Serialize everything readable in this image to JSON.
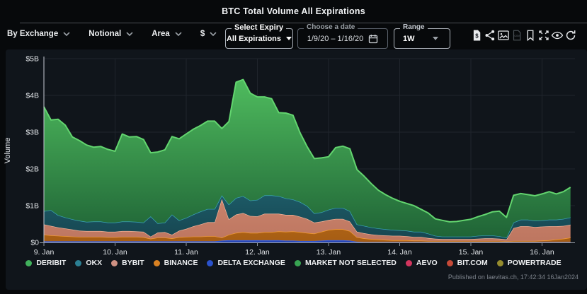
{
  "header": {
    "title": "BTC Total Volume All Expirations"
  },
  "toolbar": {
    "filters": [
      {
        "label": "By Exchange"
      },
      {
        "label": "Notional"
      },
      {
        "label": "Area"
      },
      {
        "label": "$"
      }
    ],
    "expiry": {
      "legend": "Select Expiry",
      "value": "All Expirations"
    },
    "date": {
      "legend": "Choose a date",
      "value": "1/9/20 – 1/16/20"
    },
    "range": {
      "legend": "Range",
      "value": "1W"
    },
    "icons": [
      "export-data",
      "share",
      "download-image",
      "download-csv",
      "bookmark",
      "fullscreen",
      "toggle-visibility",
      "refresh"
    ]
  },
  "footer": {
    "published": "Published on laevitas.ch, 17:42:34 16Jan2024"
  },
  "chart_data": {
    "type": "area",
    "stacked": true,
    "title": "BTC Total Volume All Expirations",
    "ylabel": "Volume",
    "units": "$B",
    "ylim": [
      0,
      5
    ],
    "ytick_labels": [
      "$0",
      "$1B",
      "$2B",
      "$3B",
      "$4B",
      "$5B"
    ],
    "xtick_labels": [
      "9. Jan",
      "10. Jan",
      "11. Jan",
      "12. Jan",
      "13. Jan",
      "14. Jan",
      "15. Jan",
      "16. Jan"
    ],
    "grid": true,
    "legend_position": "bottom",
    "x": {
      "start": 0,
      "step": 0.1,
      "count": 75,
      "unit": "days-from-9-jan"
    },
    "series": [
      {
        "name": "DELTA EXCHANGE",
        "fill_top": "#3558d8",
        "fill_bottom": "#2747b8",
        "stroke": "#3f68ec",
        "values": [
          0.03,
          0.03,
          0.03,
          0.03,
          0.03,
          0.03,
          0.03,
          0.03,
          0.03,
          0.03,
          0.03,
          0.03,
          0.03,
          0.03,
          0.03,
          0.03,
          0.03,
          0.03,
          0.03,
          0.03,
          0.03,
          0.03,
          0.03,
          0.03,
          0.03,
          0.05,
          0.06,
          0.06,
          0.06,
          0.06,
          0.06,
          0.06,
          0.06,
          0.06,
          0.05,
          0.05,
          0.04,
          0.04,
          0.04,
          0.05,
          0.06,
          0.06,
          0.06,
          0.05,
          0.02,
          0.01,
          0.01,
          0.01,
          0.01,
          0.01,
          0.01,
          0.01,
          0.01,
          0.01,
          0.01,
          0.01,
          0.01,
          0.01,
          0.01,
          0.01,
          0.01,
          0.01,
          0.01,
          0.01,
          0.01,
          0.01,
          0.01,
          0.01,
          0.01,
          0.01,
          0.01,
          0.01,
          0.01,
          0.01,
          0.01
        ]
      },
      {
        "name": "BINANCE",
        "fill_top": "#f29422",
        "fill_bottom": "#a65d14",
        "stroke": "#f59d2e",
        "values": [
          0.18,
          0.16,
          0.15,
          0.14,
          0.13,
          0.12,
          0.12,
          0.12,
          0.12,
          0.11,
          0.11,
          0.12,
          0.12,
          0.12,
          0.11,
          0.07,
          0.1,
          0.1,
          0.08,
          0.11,
          0.12,
          0.13,
          0.13,
          0.14,
          0.14,
          0.08,
          0.15,
          0.2,
          0.22,
          0.2,
          0.2,
          0.22,
          0.22,
          0.24,
          0.24,
          0.25,
          0.24,
          0.22,
          0.2,
          0.24,
          0.28,
          0.3,
          0.3,
          0.26,
          0.12,
          0.1,
          0.08,
          0.07,
          0.06,
          0.05,
          0.05,
          0.05,
          0.04,
          0.04,
          0.03,
          0.03,
          0.03,
          0.03,
          0.03,
          0.03,
          0.03,
          0.03,
          0.03,
          0.03,
          0.03,
          0.02,
          0.03,
          0.03,
          0.03,
          0.03,
          0.04,
          0.05,
          0.07,
          0.09,
          0.12
        ]
      },
      {
        "name": "BYBIT",
        "fill_top": "#f0a98f",
        "fill_bottom": "#bd7660",
        "stroke": "#f4b49a",
        "values": [
          0.28,
          0.26,
          0.23,
          0.21,
          0.19,
          0.17,
          0.16,
          0.16,
          0.16,
          0.15,
          0.15,
          0.16,
          0.16,
          0.15,
          0.15,
          0.06,
          0.14,
          0.15,
          0.1,
          0.18,
          0.22,
          0.28,
          0.33,
          0.38,
          0.38,
          1.05,
          0.42,
          0.5,
          0.52,
          0.46,
          0.45,
          0.5,
          0.5,
          0.48,
          0.46,
          0.45,
          0.42,
          0.38,
          0.3,
          0.28,
          0.27,
          0.28,
          0.28,
          0.26,
          0.15,
          0.14,
          0.13,
          0.12,
          0.12,
          0.12,
          0.12,
          0.11,
          0.1,
          0.1,
          0.08,
          0.06,
          0.05,
          0.05,
          0.05,
          0.05,
          0.05,
          0.06,
          0.07,
          0.07,
          0.06,
          0.05,
          0.35,
          0.4,
          0.4,
          0.38,
          0.38,
          0.38,
          0.36,
          0.35,
          0.35
        ]
      },
      {
        "name": "OKX",
        "fill_top": "#2f93a8",
        "fill_bottom": "#16454f",
        "stroke": "#3aa5ba",
        "values": [
          0.36,
          0.43,
          0.33,
          0.3,
          0.28,
          0.27,
          0.25,
          0.26,
          0.26,
          0.25,
          0.25,
          0.26,
          0.26,
          0.26,
          0.25,
          0.55,
          0.25,
          0.26,
          0.55,
          0.28,
          0.3,
          0.32,
          0.35,
          0.36,
          0.36,
          0.1,
          0.4,
          0.45,
          0.46,
          0.42,
          0.45,
          0.5,
          0.5,
          0.48,
          0.45,
          0.42,
          0.4,
          0.35,
          0.25,
          0.25,
          0.28,
          0.3,
          0.3,
          0.28,
          0.2,
          0.2,
          0.19,
          0.18,
          0.17,
          0.16,
          0.15,
          0.15,
          0.14,
          0.14,
          0.12,
          0.08,
          0.07,
          0.07,
          0.07,
          0.07,
          0.07,
          0.08,
          0.08,
          0.08,
          0.07,
          0.05,
          0.15,
          0.18,
          0.18,
          0.17,
          0.17,
          0.18,
          0.18,
          0.19,
          0.2
        ]
      },
      {
        "name": "DERIBIT",
        "fill_top": "#55c763",
        "fill_bottom": "#1e6135",
        "stroke": "#63d56f",
        "values": [
          2.84,
          2.45,
          2.61,
          2.51,
          2.24,
          2.18,
          2.09,
          2.02,
          2.04,
          1.99,
          1.94,
          2.38,
          2.3,
          2.32,
          2.26,
          1.73,
          1.94,
          1.98,
          2.12,
          2.22,
          2.28,
          2.32,
          2.34,
          2.39,
          2.39,
          1.82,
          2.26,
          3.15,
          3.17,
          2.92,
          2.8,
          2.68,
          2.63,
          2.27,
          2.32,
          2.29,
          1.88,
          1.61,
          1.49,
          1.48,
          1.44,
          1.64,
          1.68,
          1.7,
          1.49,
          1.35,
          1.19,
          1.04,
          0.94,
          0.86,
          0.79,
          0.74,
          0.71,
          0.61,
          0.56,
          0.46,
          0.44,
          0.4,
          0.41,
          0.44,
          0.47,
          0.52,
          0.57,
          0.64,
          0.68,
          0.55,
          0.74,
          0.71,
          0.68,
          0.68,
          0.72,
          0.76,
          0.7,
          0.74,
          0.82
        ]
      }
    ],
    "legend": [
      {
        "label": "DERIBIT",
        "color": "#41b15c"
      },
      {
        "label": "OKX",
        "color": "#2b7f93"
      },
      {
        "label": "BYBIT",
        "color": "#cf9183"
      },
      {
        "label": "BINANCE",
        "color": "#d98122"
      },
      {
        "label": "DELTA EXCHANGE",
        "color": "#2a52cc"
      },
      {
        "label": "MARKET NOT SELECTED",
        "color": "#38a452"
      },
      {
        "label": "AEVO",
        "color": "#d2355e"
      },
      {
        "label": "BIT.COM",
        "color": "#c64a38"
      },
      {
        "label": "POWERTRADE",
        "color": "#968c2e"
      }
    ]
  }
}
